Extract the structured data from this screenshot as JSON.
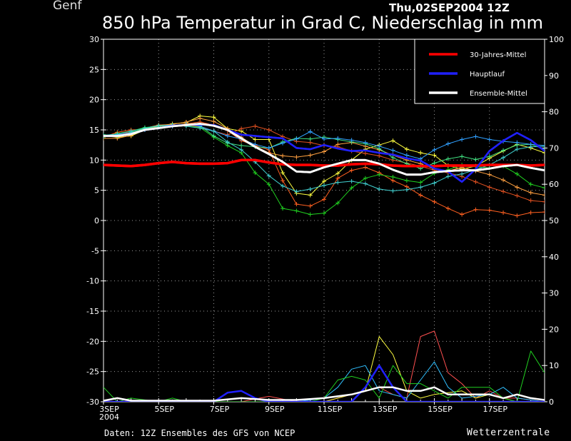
{
  "header": {
    "location": "Genf",
    "run": "Thu,02SEP2004 12Z",
    "title": "850 hPa Temperatur in Grad C, Niederschlag in mm"
  },
  "footer": {
    "source": "Daten: 12Z Ensembles des GFS von NCEP",
    "brand": "Wetterzentrale"
  },
  "chart_data": {
    "type": "line",
    "y_left": {
      "label": "",
      "lim": [
        -30,
        30
      ],
      "ticks": [
        30,
        25,
        20,
        15,
        10,
        5,
        0,
        -5,
        -10,
        -15,
        -20,
        -25,
        -30
      ]
    },
    "y_right": {
      "label": "",
      "lim": [
        0,
        100
      ],
      "ticks": [
        100,
        90,
        80,
        70,
        60,
        50,
        40,
        30,
        20,
        10,
        0
      ]
    },
    "x": {
      "lim": [
        0,
        16
      ],
      "tick_labels": [
        {
          "x": 0,
          "label": "3SEP",
          "label2": "2004"
        },
        {
          "x": 2,
          "label": "5SEP"
        },
        {
          "x": 4,
          "label": "7SEP"
        },
        {
          "x": 6,
          "label": "9SEP"
        },
        {
          "x": 8,
          "label": "11SEP"
        },
        {
          "x": 10,
          "label": "13SEP"
        },
        {
          "x": 12,
          "label": "15SEP"
        },
        {
          "x": 14,
          "label": "17SEP"
        }
      ]
    },
    "grid": true,
    "legend": {
      "placement": "top-right",
      "entries": [
        {
          "name": "30-Jahres-Mittel",
          "color": "#ff0000"
        },
        {
          "name": "Hauptlauf",
          "color": "#2020ff"
        },
        {
          "name": "Ensemble-Mittel",
          "color": "#ffffff"
        }
      ]
    },
    "temp_x_step": 0.5,
    "series": [
      {
        "name": "30-Jahres-Mittel",
        "color": "#ff0000",
        "width": 3.5,
        "axis": "left",
        "values": [
          9.2,
          9.1,
          9.0,
          9.2,
          9.5,
          9.7,
          9.5,
          9.4,
          9.4,
          9.5,
          10.0,
          10.0,
          9.6,
          9.3,
          9.2,
          9.2,
          9.1,
          9.1,
          9.3,
          9.4,
          9.3,
          9.1,
          9.0,
          9.0,
          9.0,
          9.1,
          9.1,
          9.1,
          9.2,
          9.2,
          9.2,
          9.1,
          9.2
        ]
      },
      {
        "name": "Hauptlauf",
        "color": "#2020ff",
        "width": 2.5,
        "axis": "left",
        "values": [
          14.0,
          14.0,
          14.3,
          15.0,
          15.3,
          15.7,
          15.8,
          15.9,
          15.8,
          15.0,
          14.2,
          14.0,
          13.8,
          13.6,
          12.0,
          11.8,
          12.5,
          11.9,
          11.5,
          11.6,
          11.2,
          10.9,
          10.3,
          9.9,
          8.6,
          8.1,
          6.4,
          8.5,
          11.5,
          13.2,
          14.5,
          13.3,
          11.5
        ]
      },
      {
        "name": "Ensemble-Mittel",
        "color": "#ffffff",
        "width": 2.8,
        "axis": "left",
        "values": [
          14.0,
          14.0,
          14.3,
          15.0,
          15.3,
          15.6,
          15.8,
          16.0,
          15.7,
          15.0,
          13.6,
          12.2,
          11.0,
          9.7,
          8.1,
          8.0,
          8.8,
          9.4,
          10.0,
          10.0,
          9.4,
          8.4,
          7.6,
          7.6,
          8.0,
          8.2,
          8.3,
          8.3,
          8.6,
          9.0,
          9.2,
          8.7,
          8.3
        ]
      },
      {
        "name": "",
        "color": "#ffff40",
        "width": 1,
        "axis": "left",
        "marker": "plus",
        "values": [
          14.0,
          13.8,
          14.0,
          15.0,
          15.6,
          16.0,
          16.2,
          17.3,
          17.1,
          15.2,
          14.8,
          13.4,
          13.4,
          7.9,
          4.5,
          4.2,
          6.5,
          7.8,
          10.0,
          11.8,
          12.5,
          13.2,
          11.8,
          11.2,
          10.8,
          9.1,
          8.5,
          9.0,
          10.3,
          11.5,
          12.6,
          12.0,
          11.2
        ]
      },
      {
        "name": "",
        "color": "#ffa040",
        "width": 1,
        "axis": "left",
        "marker": "plus",
        "values": [
          13.6,
          13.6,
          14.1,
          15.3,
          15.8,
          15.9,
          16.3,
          16.9,
          16.4,
          15.2,
          13.8,
          12.3,
          11.2,
          10.7,
          10.5,
          10.8,
          11.4,
          12.6,
          12.9,
          12.3,
          11.7,
          10.8,
          10.0,
          9.4,
          8.5,
          8.2,
          8.8,
          8.2,
          7.6,
          6.7,
          5.5,
          4.6,
          4.2
        ]
      },
      {
        "name": "",
        "color": "#ff6020",
        "width": 1,
        "axis": "left",
        "marker": "plus",
        "values": [
          13.8,
          14.6,
          15.0,
          15.1,
          15.6,
          15.7,
          16.0,
          16.3,
          15.8,
          14.9,
          13.2,
          12.4,
          11.7,
          6.6,
          2.7,
          2.4,
          3.5,
          7.0,
          8.3,
          8.8,
          7.9,
          6.6,
          5.6,
          4.2,
          3.1,
          2.0,
          1.0,
          1.8,
          1.7,
          1.3,
          0.8,
          1.3,
          1.4
        ]
      },
      {
        "name": "",
        "color": "#e05020",
        "width": 1,
        "axis": "left",
        "marker": "plus",
        "values": [
          13.8,
          14.4,
          14.6,
          15.0,
          15.4,
          15.6,
          15.8,
          15.5,
          14.8,
          14.2,
          15.2,
          15.6,
          15.0,
          13.9,
          13.1,
          12.9,
          12.4,
          12.2,
          11.5,
          11.1,
          10.7,
          10.0,
          9.5,
          9.0,
          8.3,
          7.9,
          7.3,
          6.4,
          5.5,
          4.8,
          4.1,
          3.3,
          3.1
        ]
      },
      {
        "name": "",
        "color": "#20d020",
        "width": 1,
        "axis": "left",
        "marker": "plus",
        "values": [
          13.8,
          14.4,
          14.8,
          15.4,
          15.6,
          15.8,
          15.7,
          15.4,
          13.8,
          12.4,
          11.2,
          7.9,
          6.0,
          2.0,
          1.6,
          1.0,
          1.2,
          2.9,
          5.4,
          7.0,
          7.6,
          7.2,
          6.6,
          6.3,
          7.8,
          8.4,
          9.2,
          8.9,
          8.7,
          9.0,
          7.7,
          6.0,
          5.4
        ]
      },
      {
        "name": "",
        "color": "#40e080",
        "width": 1,
        "axis": "left",
        "marker": "plus",
        "values": [
          14.2,
          14.0,
          14.6,
          15.2,
          15.6,
          15.8,
          15.9,
          15.7,
          14.0,
          12.8,
          12.4,
          12.2,
          12.0,
          13.0,
          13.6,
          13.5,
          13.8,
          13.4,
          13.0,
          12.7,
          11.9,
          10.4,
          9.4,
          8.6,
          9.5,
          10.2,
          10.6,
          10.1,
          10.6,
          11.6,
          12.5,
          12.6,
          11.8
        ]
      },
      {
        "name": "",
        "color": "#30a0ff",
        "width": 1,
        "axis": "left",
        "marker": "plus",
        "values": [
          13.9,
          14.2,
          14.5,
          15.0,
          15.4,
          15.6,
          15.9,
          15.6,
          14.8,
          14.0,
          13.5,
          12.6,
          12.0,
          12.8,
          13.5,
          14.7,
          13.5,
          13.6,
          13.3,
          12.9,
          12.3,
          11.6,
          10.8,
          10.2,
          11.7,
          12.7,
          13.4,
          13.9,
          13.4,
          13.1,
          12.9,
          12.6,
          12.4
        ]
      },
      {
        "name": "",
        "color": "#40d0d0",
        "width": 1,
        "axis": "left",
        "marker": "plus",
        "values": [
          14.1,
          14.3,
          14.8,
          15.3,
          15.7,
          15.8,
          15.6,
          15.3,
          14.8,
          13.0,
          11.7,
          9.7,
          7.4,
          5.7,
          4.8,
          5.2,
          5.8,
          6.3,
          6.5,
          6.1,
          5.2,
          4.9,
          5.1,
          5.5,
          6.2,
          7.3,
          7.7,
          8.4,
          9.2,
          10.4,
          11.8,
          12.2,
          12.3
        ]
      },
      {
        "name": "",
        "color": "#ff5050",
        "width": 1,
        "axis": "right",
        "precip": true,
        "values": [
          {
            "x": 0,
            "v": 0
          },
          {
            "x": 0.5,
            "v": 1
          },
          {
            "x": 1,
            "v": 0
          },
          {
            "x": 4,
            "v": 0
          },
          {
            "x": 5,
            "v": 0
          },
          {
            "x": 6,
            "v": 1.5
          },
          {
            "x": 7,
            "v": 0
          },
          {
            "x": 8,
            "v": 0
          },
          {
            "x": 8.5,
            "v": 1
          },
          {
            "x": 9,
            "v": 2
          },
          {
            "x": 10,
            "v": 4
          },
          {
            "x": 10.5,
            "v": 2
          },
          {
            "x": 11,
            "v": 1
          },
          {
            "x": 11.5,
            "v": 18
          },
          {
            "x": 12,
            "v": 19.5
          },
          {
            "x": 12.5,
            "v": 8
          },
          {
            "x": 13,
            "v": 5
          },
          {
            "x": 13.5,
            "v": 1
          },
          {
            "x": 14,
            "v": 3
          },
          {
            "x": 14.5,
            "v": 1
          },
          {
            "x": 15,
            "v": 1
          },
          {
            "x": 16,
            "v": 0
          }
        ]
      },
      {
        "name": "",
        "color": "#ffff40",
        "width": 1,
        "axis": "right",
        "precip": true,
        "values": [
          {
            "x": 0,
            "v": 0
          },
          {
            "x": 4,
            "v": 0
          },
          {
            "x": 5,
            "v": 0
          },
          {
            "x": 6,
            "v": 0
          },
          {
            "x": 7,
            "v": 0
          },
          {
            "x": 8,
            "v": 0
          },
          {
            "x": 9,
            "v": 2
          },
          {
            "x": 9.5,
            "v": 3
          },
          {
            "x": 10,
            "v": 18
          },
          {
            "x": 10.5,
            "v": 13
          },
          {
            "x": 11,
            "v": 3
          },
          {
            "x": 11.5,
            "v": 1
          },
          {
            "x": 12,
            "v": 2
          },
          {
            "x": 13,
            "v": 3
          },
          {
            "x": 13.5,
            "v": 1
          },
          {
            "x": 14,
            "v": 2
          },
          {
            "x": 15,
            "v": 0
          },
          {
            "x": 16,
            "v": 0
          }
        ]
      },
      {
        "name": "",
        "color": "#30c0ff",
        "width": 1,
        "axis": "right",
        "precip": true,
        "values": [
          {
            "x": 0,
            "v": 0
          },
          {
            "x": 4,
            "v": 0
          },
          {
            "x": 6,
            "v": 0
          },
          {
            "x": 7,
            "v": 0
          },
          {
            "x": 7.5,
            "v": 0.5
          },
          {
            "x": 8,
            "v": 1
          },
          {
            "x": 8.5,
            "v": 4
          },
          {
            "x": 9,
            "v": 9
          },
          {
            "x": 9.5,
            "v": 10
          },
          {
            "x": 10,
            "v": 3
          },
          {
            "x": 11,
            "v": 1
          },
          {
            "x": 11.5,
            "v": 6
          },
          {
            "x": 12,
            "v": 11
          },
          {
            "x": 12.5,
            "v": 4
          },
          {
            "x": 13,
            "v": 1
          },
          {
            "x": 14,
            "v": 2
          },
          {
            "x": 14.5,
            "v": 4
          },
          {
            "x": 15,
            "v": 1
          },
          {
            "x": 16,
            "v": 0
          }
        ]
      },
      {
        "name": "",
        "color": "#20d020",
        "width": 1,
        "axis": "right",
        "precip": true,
        "values": [
          {
            "x": 0,
            "v": 4
          },
          {
            "x": 0.5,
            "v": 0
          },
          {
            "x": 1,
            "v": 1
          },
          {
            "x": 2,
            "v": 0
          },
          {
            "x": 2.5,
            "v": 1
          },
          {
            "x": 3,
            "v": 0
          },
          {
            "x": 6,
            "v": 0
          },
          {
            "x": 7.5,
            "v": 0
          },
          {
            "x": 8,
            "v": 1
          },
          {
            "x": 8.5,
            "v": 6
          },
          {
            "x": 9,
            "v": 7
          },
          {
            "x": 9.5,
            "v": 6
          },
          {
            "x": 10,
            "v": 1
          },
          {
            "x": 10.5,
            "v": 10
          },
          {
            "x": 11,
            "v": 5
          },
          {
            "x": 11.5,
            "v": 5
          },
          {
            "x": 12,
            "v": 3
          },
          {
            "x": 12.5,
            "v": 1
          },
          {
            "x": 13,
            "v": 4
          },
          {
            "x": 14,
            "v": 4
          },
          {
            "x": 14.5,
            "v": 1
          },
          {
            "x": 15,
            "v": 0
          },
          {
            "x": 15.5,
            "v": 14
          },
          {
            "x": 16,
            "v": 8
          }
        ]
      },
      {
        "name": "Hauptlauf",
        "color": "#2020ff",
        "width": 2.5,
        "axis": "right",
        "precip": true,
        "values": [
          {
            "x": 0,
            "v": 0
          },
          {
            "x": 4,
            "v": 0
          },
          {
            "x": 4.5,
            "v": 2.5
          },
          {
            "x": 5,
            "v": 3
          },
          {
            "x": 5.5,
            "v": 1
          },
          {
            "x": 6,
            "v": 0
          },
          {
            "x": 9,
            "v": 0
          },
          {
            "x": 9.5,
            "v": 4
          },
          {
            "x": 10,
            "v": 10
          },
          {
            "x": 10.5,
            "v": 4
          },
          {
            "x": 11,
            "v": 0
          },
          {
            "x": 12,
            "v": 0
          },
          {
            "x": 13,
            "v": 0
          },
          {
            "x": 16,
            "v": 0
          }
        ]
      },
      {
        "name": "Ensemble-Mittel",
        "color": "#ffffff",
        "width": 2.5,
        "axis": "right",
        "precip": true,
        "values": [
          {
            "x": 0,
            "v": 0.3
          },
          {
            "x": 0.5,
            "v": 1
          },
          {
            "x": 1,
            "v": 0.3
          },
          {
            "x": 2,
            "v": 0.3
          },
          {
            "x": 3,
            "v": 0.3
          },
          {
            "x": 4,
            "v": 0.3
          },
          {
            "x": 5,
            "v": 1
          },
          {
            "x": 6,
            "v": 0.5
          },
          {
            "x": 7,
            "v": 0.5
          },
          {
            "x": 8,
            "v": 1
          },
          {
            "x": 9,
            "v": 2
          },
          {
            "x": 9.5,
            "v": 3
          },
          {
            "x": 10,
            "v": 4
          },
          {
            "x": 10.5,
            "v": 4
          },
          {
            "x": 11,
            "v": 3
          },
          {
            "x": 11.5,
            "v": 3
          },
          {
            "x": 12,
            "v": 4
          },
          {
            "x": 12.5,
            "v": 2
          },
          {
            "x": 13,
            "v": 2
          },
          {
            "x": 14,
            "v": 2
          },
          {
            "x": 14.5,
            "v": 1
          },
          {
            "x": 15,
            "v": 2
          },
          {
            "x": 15.5,
            "v": 1
          },
          {
            "x": 16,
            "v": 0.5
          }
        ]
      }
    ]
  }
}
